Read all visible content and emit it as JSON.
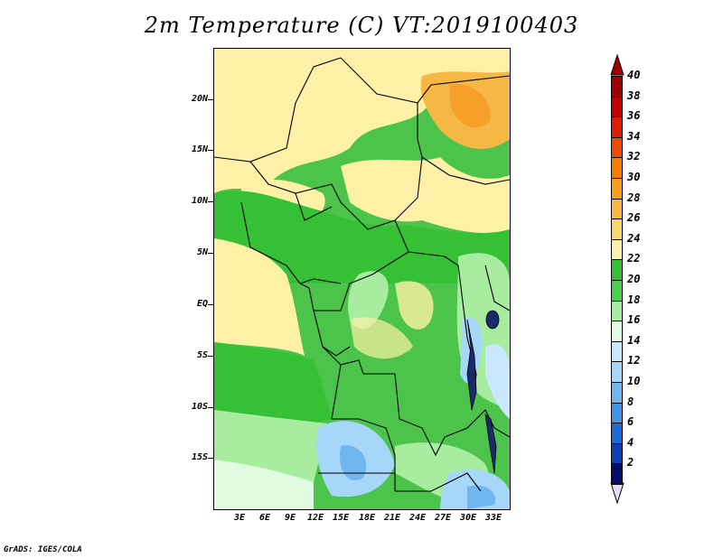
{
  "title": "2m Temperature (C) VT:2019100403",
  "credit": "GrADS: IGES/COLA",
  "lat_labels": [
    "20N",
    "15N",
    "10N",
    "5N",
    "EQ",
    "5S",
    "10S",
    "15S"
  ],
  "lon_labels": [
    "3E",
    "6E",
    "9E",
    "12E",
    "15E",
    "18E",
    "21E",
    "24E",
    "27E",
    "30E",
    "33E"
  ],
  "colorbar": {
    "labels": [
      "40",
      "38",
      "36",
      "34",
      "32",
      "30",
      "28",
      "26",
      "24",
      "22",
      "20",
      "18",
      "16",
      "14",
      "12",
      "10",
      "8",
      "6",
      "4",
      "2"
    ],
    "colors": [
      "#a00000",
      "#c80000",
      "#e11b00",
      "#f04a00",
      "#f57e00",
      "#fa9c1c",
      "#f6b845",
      "#f9d76b",
      "#fcf1a7",
      "#36c036",
      "#4cd04c",
      "#a8eca0",
      "#e1fbe1",
      "#c9e8ff",
      "#a6d6f8",
      "#72b6ef",
      "#4194e6",
      "#1e6ad6",
      "#0c40b4",
      "#000f66"
    ]
  }
}
